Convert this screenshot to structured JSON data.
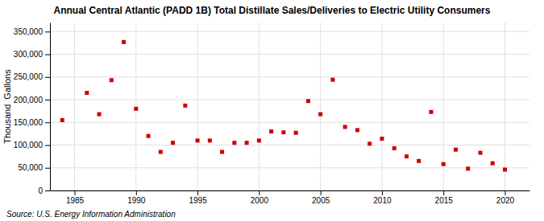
{
  "chart_data": {
    "type": "scatter",
    "title": "Annual Central Atlantic (PADD 1B) Total Distillate Sales/Deliveries to Electric Utility Consumers",
    "ylabel": "Thousand  Gallons",
    "annotations": [
      "Source: U.S. Energy Information Administration"
    ],
    "x": [
      1984,
      1986,
      1987,
      1988,
      1989,
      1990,
      1991,
      1992,
      1993,
      1994,
      1995,
      1996,
      1997,
      1998,
      1999,
      2000,
      2001,
      2002,
      2003,
      2004,
      2005,
      2006,
      2007,
      2008,
      2009,
      2010,
      2011,
      2012,
      2013,
      2014,
      2015,
      2016,
      2017,
      2018,
      2019,
      2020
    ],
    "values": [
      155000,
      215000,
      168000,
      243000,
      327000,
      180000,
      120000,
      85000,
      105000,
      187000,
      110000,
      110000,
      85000,
      105000,
      105000,
      110000,
      130000,
      128000,
      127000,
      197000,
      168000,
      244000,
      140000,
      133000,
      103000,
      114000,
      93000,
      75000,
      65000,
      173000,
      58000,
      90000,
      48000,
      83000,
      60000,
      46000
    ],
    "color": "#cc0000",
    "marker": "square",
    "xlim": [
      1983,
      2022
    ],
    "ylim": [
      0,
      370000
    ],
    "xticks": [
      1985,
      1990,
      1995,
      2000,
      2005,
      2010,
      2015,
      2020
    ],
    "yticks": [
      0,
      {
        "value": 50000,
        "label": "50,000"
      },
      {
        "value": 100000,
        "label": "100,000"
      },
      {
        "value": 150000,
        "label": "150,000"
      },
      {
        "value": 200000,
        "label": "200,000"
      },
      {
        "value": 250000,
        "label": "250,000"
      },
      {
        "value": 300000,
        "label": "300,000"
      },
      {
        "value": 350000,
        "label": "350,000"
      }
    ],
    "grid": true
  }
}
